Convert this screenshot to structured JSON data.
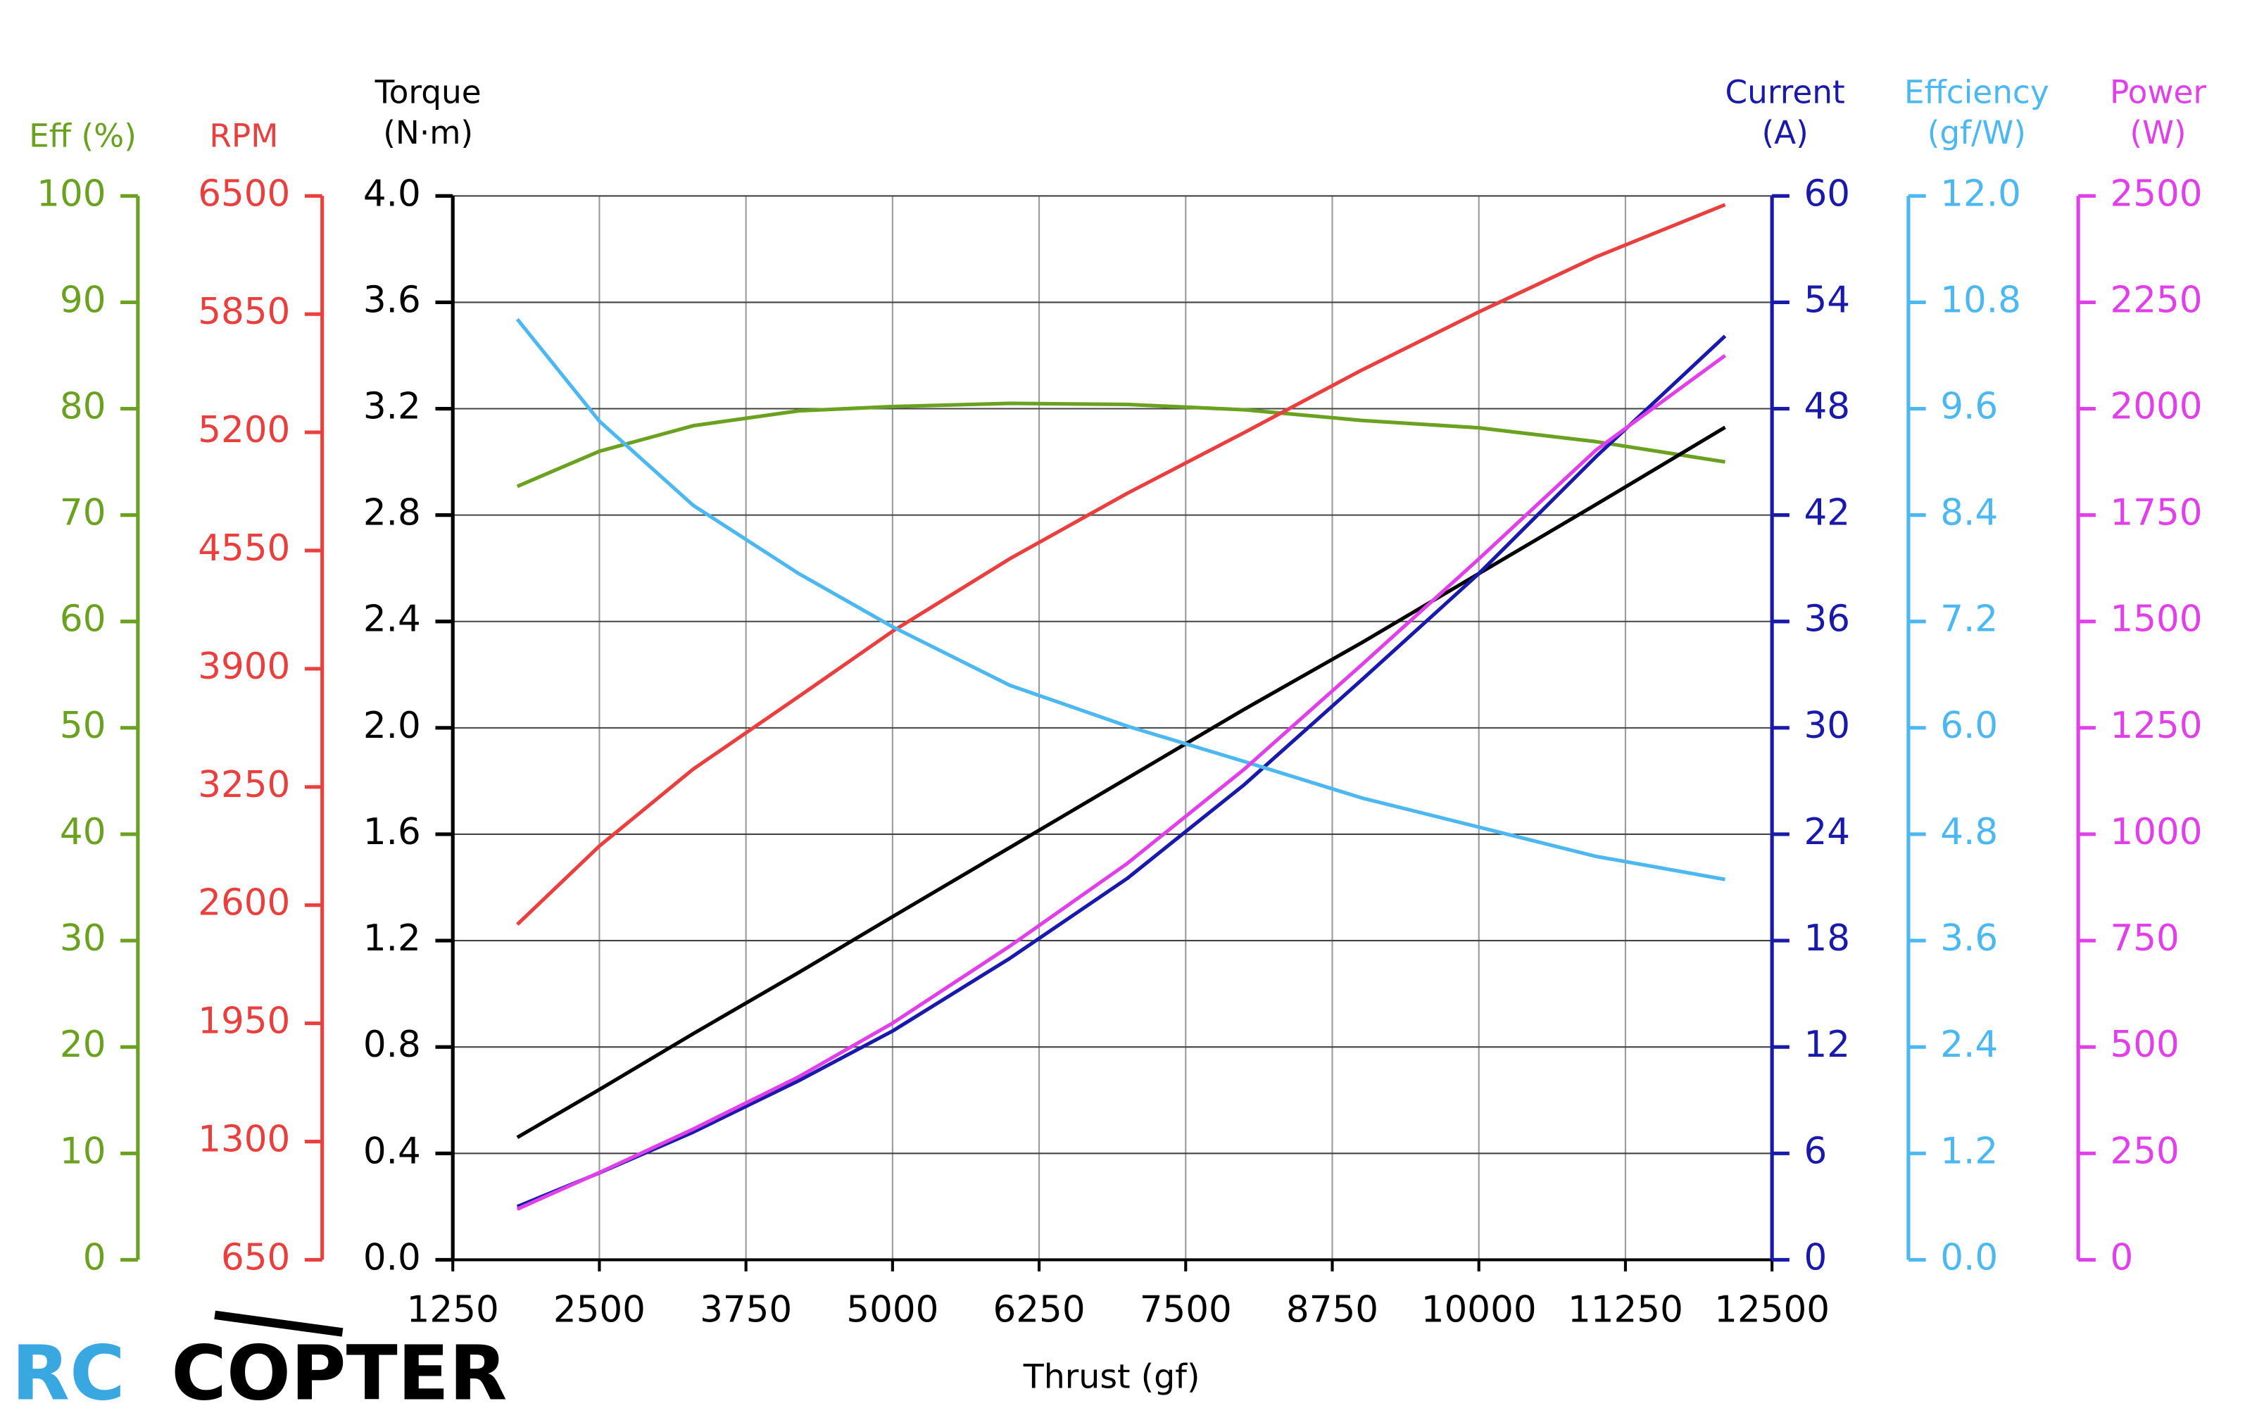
{
  "chart_data": {
    "type": "line",
    "x_label": "Thrust (gf)",
    "xlim": [
      1250,
      12500
    ],
    "xticks": [
      1250,
      2500,
      3750,
      5000,
      6250,
      7500,
      8750,
      10000,
      11250,
      12500
    ],
    "grid": true,
    "grid_axis": 2,
    "x": [
      1800,
      2500,
      3300,
      4200,
      5000,
      6000,
      7000,
      8000,
      9000,
      10000,
      11000,
      12100
    ],
    "axes": [
      {
        "label": [
          "Eff (%)"
        ],
        "side": "left",
        "color": "#6aa121",
        "lim": [
          0,
          100
        ],
        "ticks": [
          0,
          10,
          20,
          30,
          40,
          50,
          60,
          70,
          80,
          90,
          100
        ]
      },
      {
        "label": [
          "RPM"
        ],
        "side": "left",
        "color": "#e8403f",
        "lim": [
          650,
          6500
        ],
        "ticks": [
          650,
          1300,
          1950,
          2600,
          3250,
          3900,
          4550,
          5200,
          5850,
          6500
        ]
      },
      {
        "label": [
          "Torque",
          "(N·m)"
        ],
        "side": "left",
        "color": "#000000",
        "lim": [
          0,
          4
        ],
        "ticks": [
          {
            "value": 0,
            "label": "0.0"
          },
          0.4,
          0.8,
          1.2,
          1.6,
          {
            "value": 2,
            "label": "2.0"
          },
          2.4,
          2.8,
          3.2,
          3.6,
          {
            "value": 4,
            "label": "4.0"
          }
        ]
      },
      {
        "label": [
          "Current",
          "(A)"
        ],
        "side": "right",
        "color": "#1a1aaa",
        "lim": [
          0,
          60
        ],
        "ticks": [
          0,
          6,
          12,
          18,
          24,
          30,
          36,
          42,
          48,
          54,
          60
        ]
      },
      {
        "label": [
          "Effciency",
          "(gf/W)"
        ],
        "side": "right",
        "color": "#4db8f0",
        "lim": [
          0,
          12
        ],
        "ticks": [
          {
            "value": 0,
            "label": "0.0"
          },
          1.2,
          2.4,
          3.6,
          4.8,
          {
            "value": 6,
            "label": "6.0"
          },
          7.2,
          8.4,
          9.6,
          10.8,
          {
            "value": 12,
            "label": "12.0"
          }
        ]
      },
      {
        "label": [
          "Power",
          "(W)"
        ],
        "side": "right",
        "color": "#e040e8",
        "lim": [
          0,
          2500
        ],
        "ticks": [
          0,
          250,
          500,
          750,
          1000,
          1250,
          1500,
          1750,
          2000,
          2250,
          2500
        ]
      }
    ],
    "series": [
      {
        "name": "Eff",
        "axis": 0,
        "color": "#6aa121",
        "values": [
          72.7,
          76.0,
          78.4,
          79.8,
          80.2,
          80.5,
          80.4,
          79.9,
          78.9,
          78.2,
          76.9,
          75.0
        ]
      },
      {
        "name": "RPM",
        "axis": 1,
        "color": "#e8403f",
        "values": [
          2494,
          2925,
          3348,
          3747,
          4106,
          4505,
          4864,
          5199,
          5542,
          5862,
          6165,
          6452
        ]
      },
      {
        "name": "Torque",
        "axis": 2,
        "color": "#000000",
        "values": [
          0.46,
          0.64,
          0.85,
          1.08,
          1.29,
          1.55,
          1.81,
          2.07,
          2.32,
          2.58,
          2.84,
          3.13
        ]
      },
      {
        "name": "Current",
        "axis": 3,
        "color": "#1a1aaa",
        "values": [
          3.0,
          4.9,
          7.2,
          10.1,
          12.9,
          17.0,
          21.5,
          26.8,
          32.7,
          38.7,
          45.3,
          52.1
        ]
      },
      {
        "name": "Effciency",
        "axis": 4,
        "color": "#4db8f0",
        "values": [
          10.61,
          9.46,
          8.51,
          7.74,
          7.14,
          6.48,
          6.02,
          5.62,
          5.21,
          4.88,
          4.55,
          4.29
        ]
      },
      {
        "name": "Power",
        "axis": 5,
        "color": "#e040e8",
        "values": [
          119,
          205,
          307,
          430,
          556,
          737,
          931,
          1153,
          1398,
          1647,
          1903,
          2125
        ]
      }
    ]
  },
  "logo": {
    "left": "RC",
    "right": "COPTER"
  }
}
